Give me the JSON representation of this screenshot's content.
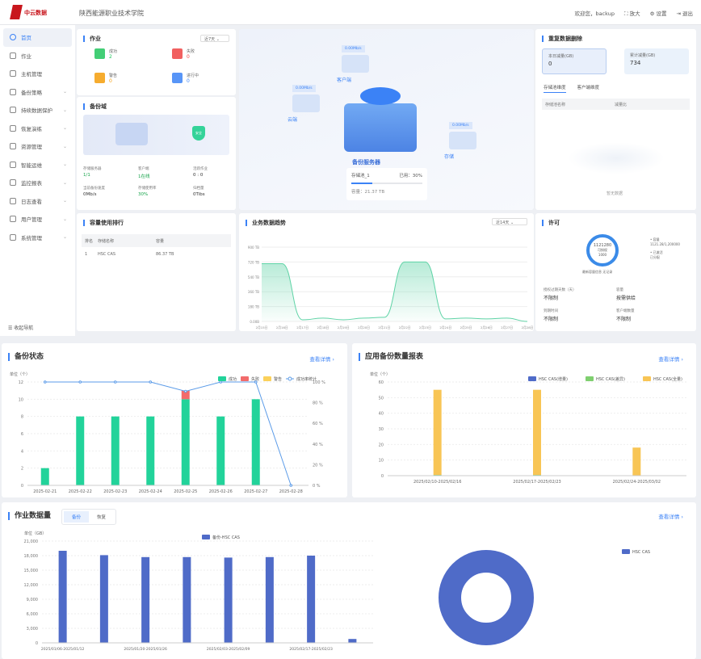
{
  "header": {
    "logo_text": "中云数据",
    "org": "陕西能源职业技术学院",
    "welcome": "欢迎您，backup",
    "zoom": "放大",
    "settings": "设置",
    "logout": "退出"
  },
  "sidebar": {
    "items": [
      {
        "label": "首页",
        "active": true
      },
      {
        "label": "作业"
      },
      {
        "label": "主机管理"
      },
      {
        "label": "备份策略",
        "sub": true
      },
      {
        "label": "持续数据保护",
        "sub": true
      },
      {
        "label": "恢复演练",
        "sub": true
      },
      {
        "label": "资源管理",
        "sub": true
      },
      {
        "label": "智能运维",
        "sub": true
      },
      {
        "label": "监控报表",
        "sub": true
      },
      {
        "label": "日志查看",
        "sub": true
      },
      {
        "label": "用户管理",
        "sub": true
      },
      {
        "label": "系统管理",
        "sub": true
      }
    ],
    "collapse": "收起导航"
  },
  "jobs": {
    "title": "作业",
    "range": "近7天",
    "items": [
      {
        "label": "成功",
        "value": "2",
        "color": "#22c55e"
      },
      {
        "label": "失败",
        "value": "0",
        "color": "#ef4444"
      },
      {
        "label": "警告",
        "value": "0",
        "color": "#f59e0b"
      },
      {
        "label": "进行中",
        "value": "0",
        "color": "#3b82f6"
      }
    ]
  },
  "domain": {
    "title": "备份域",
    "badge": "安全",
    "stats": [
      {
        "label": "存储服务器",
        "value": "1/1"
      },
      {
        "label": "客户端",
        "value": "1在线"
      },
      {
        "label": "活跃作业",
        "value": "0 : 0"
      },
      {
        "label": "当前备份速度",
        "value": "0Mb/s"
      },
      {
        "label": "存储使用率",
        "value": "30%"
      },
      {
        "label": "归档量",
        "value": "0Tibs"
      }
    ]
  },
  "topology": {
    "speeds": [
      "0.00Mb/s",
      "0.00Mb/s",
      "0.00Mb/s"
    ],
    "nodes": [
      "客户端",
      "云端",
      "存储"
    ],
    "center": "备份服务器",
    "pool": "存储池_1",
    "used": "已用：30%",
    "used_pct": 30,
    "capacity": "容量：21.37 TB"
  },
  "dedup": {
    "title": "重复数据删除",
    "today_label": "本日减量(GB)",
    "today": "0",
    "total_label": "累计减量(GB)",
    "total": "734",
    "tabs": [
      "存储池维度",
      "客户端维度"
    ],
    "cols": [
      "存储池名称",
      "减量比"
    ],
    "empty": "暂无数据"
  },
  "ranking": {
    "title": "容量使用排行",
    "cols": [
      "排名",
      "存储名称",
      "容量"
    ],
    "rows": [
      [
        "1",
        "HSC CAS",
        "86.37 TB"
      ]
    ]
  },
  "license": {
    "title": "许可",
    "donut_value": "1121280",
    "donut_sub": "可授权",
    "donut_sub2": "1000",
    "legend": [
      {
        "label": "容量",
        "value": "1121.28/1,200000"
      },
      {
        "label": "已激活",
        "value": "已分配"
      }
    ],
    "caption": "最新容量信息 无记录",
    "items": [
      {
        "label": "授权过期天数（天）",
        "value": "不限制"
      },
      {
        "label": "容量",
        "value": "按需供给"
      },
      {
        "label": "到期时间",
        "value": "不限制"
      },
      {
        "label": "客户端数量",
        "value": "不限制"
      }
    ]
  },
  "chart_data": [
    {
      "id": "trend",
      "type": "area",
      "title": "业务数据趋势",
      "range": "近14天",
      "categories": [
        "2月15日",
        "2月16日",
        "2月17日",
        "2月18日",
        "2月19日",
        "2月20日",
        "2月21日",
        "2月22日",
        "2月23日",
        "2月24日",
        "2月25日",
        "2月26日",
        "2月27日",
        "2月28日"
      ],
      "values": [
        700,
        700,
        20,
        40,
        20,
        40,
        50,
        720,
        720,
        30,
        40,
        30,
        40,
        0
      ],
      "yticks": [
        "0.00B",
        "180 TB",
        "360 TB",
        "540 TB",
        "720 TB",
        "900 TB"
      ],
      "ylim": [
        0,
        900
      ],
      "color": "#5fd3a6"
    },
    {
      "id": "status",
      "type": "bar",
      "title": "备份状态",
      "link": "查看详情",
      "ylabel": "单位（个）",
      "categories": [
        "2025-02-21",
        "2025-02-22",
        "2025-02-23",
        "2025-02-24",
        "2025-02-25",
        "2025-02-26",
        "2025-02-27",
        "2025-02-28"
      ],
      "series": [
        {
          "name": "成功",
          "values": [
            2,
            8,
            8,
            8,
            10,
            8,
            10,
            0
          ],
          "color": "#22d39a"
        },
        {
          "name": "失败",
          "values": [
            0,
            0,
            0,
            0,
            1,
            0,
            0,
            0
          ],
          "color": "#f26b6b"
        },
        {
          "name": "警告",
          "values": [
            0,
            0,
            0,
            0,
            0,
            0,
            0,
            0
          ],
          "color": "#fbd15b"
        },
        {
          "name": "成功率统计",
          "values": [
            100,
            100,
            100,
            100,
            91,
            100,
            100,
            0
          ],
          "color": "#5b9be8",
          "axis": "right"
        }
      ],
      "ylim": [
        0,
        12
      ],
      "yticks": [
        "0",
        "2",
        "4",
        "6",
        "8",
        "10",
        "12"
      ],
      "y2ticks": [
        "0 %",
        "20 %",
        "40 %",
        "60 %",
        "80 %",
        "100 %"
      ]
    },
    {
      "id": "app",
      "type": "bar",
      "title": "应用备份数量报表",
      "link": "查看详情",
      "ylabel": "单位（个）",
      "categories": [
        "2025/02/10-2025/02/16",
        "2025/02/17-2025/02/23",
        "2025/02/24-2025/03/02"
      ],
      "series": [
        {
          "name": "HSC CAS(增量)",
          "values": [
            0,
            0,
            0
          ],
          "color": "#4f6bc8"
        },
        {
          "name": "HSC CAS(差异)",
          "values": [
            0.5,
            0.5,
            0
          ],
          "color": "#7fcf6f"
        },
        {
          "name": "HSC CAS(全量)",
          "values": [
            54.5,
            54.5,
            18
          ],
          "color": "#f8c555"
        }
      ],
      "ylim": [
        0,
        60
      ],
      "yticks": [
        "0",
        "10",
        "20",
        "30",
        "40",
        "50",
        "60"
      ]
    },
    {
      "id": "volume",
      "type": "bar",
      "title": "作业数据量",
      "tabs": [
        "备份",
        "恢复"
      ],
      "link": "查看详情",
      "ylabel": "单位（GB）",
      "categories": [
        "2025/01/06-2025/01/12",
        "2025/01/13-2025/01/19",
        "2025/01/20-2025/01/26",
        "2025/01/27-2025/02/02",
        "2025/02/03-2025/02/09",
        "2025/02/10-2025/02/16",
        "2025/02/17-2025/02/23",
        "2025/02/24-2025/03/02"
      ],
      "xlabels_shown": [
        "2025/01/06-2025/01/12",
        "2025/01/20-2025/01/26",
        "2025/02/03-2025/02/09",
        "2025/02/17-2025/02/23"
      ],
      "series": [
        {
          "name": "备份-HSC CAS",
          "values": [
            19000,
            18100,
            17700,
            17700,
            17600,
            17700,
            18000,
            800
          ],
          "color": "#4f6bc8"
        }
      ],
      "ylim": [
        0,
        21000
      ],
      "yticks": [
        "0",
        "3,000",
        "6,000",
        "9,000",
        "12,000",
        "15,000",
        "18,000",
        "21,000"
      ]
    },
    {
      "id": "pie",
      "type": "pie",
      "legend": [
        "HSC CAS"
      ],
      "values": [
        100
      ],
      "color": "#4f6bc8"
    }
  ]
}
